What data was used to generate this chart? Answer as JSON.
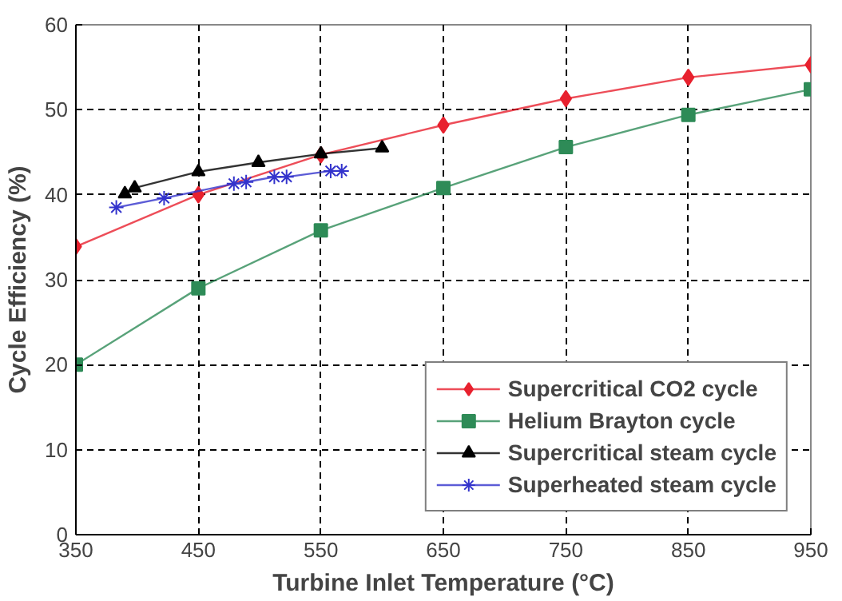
{
  "chart_data": {
    "type": "line",
    "xlabel": "Turbine Inlet Temperature (°C)",
    "ylabel": "Cycle Efficiency (%)",
    "xlim": [
      350,
      950
    ],
    "xticks": [
      350,
      450,
      550,
      650,
      750,
      850,
      950
    ],
    "ylim": [
      0,
      60
    ],
    "yticks": [
      0,
      10,
      20,
      30,
      40,
      50,
      60
    ],
    "grid": true,
    "legend": "bottom right",
    "series": [
      {
        "name": "Supercritical CO2 cycle",
        "color": "#e8212e",
        "marker": "diamond",
        "x": [
          350,
          450,
          550,
          650,
          750,
          850,
          950
        ],
        "values": [
          33.9,
          40.0,
          44.7,
          48.2,
          51.3,
          53.8,
          55.3
        ]
      },
      {
        "name": "Helium Brayton cycle",
        "color": "#2e8b57",
        "marker": "square",
        "x": [
          350,
          450,
          550,
          650,
          750,
          850,
          950
        ],
        "values": [
          20.0,
          29.0,
          35.8,
          40.8,
          45.6,
          49.4,
          52.4
        ]
      },
      {
        "name": "Supercritical steam cycle",
        "color": "#000000",
        "marker": "triangle",
        "x": [
          390,
          398,
          450,
          499,
          550,
          600
        ],
        "values": [
          40.1,
          40.8,
          42.7,
          43.8,
          44.8,
          45.5
        ]
      },
      {
        "name": "Superheated steam cycle",
        "color": "#3333cc",
        "marker": "cross",
        "x": [
          383,
          422,
          479,
          489,
          512,
          522,
          558,
          567
        ],
        "values": [
          38.5,
          39.6,
          41.3,
          41.5,
          42.1,
          42.1,
          42.8,
          42.8
        ]
      }
    ]
  }
}
